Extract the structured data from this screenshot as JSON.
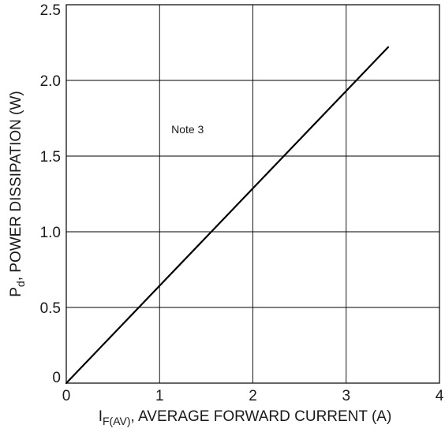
{
  "chart_data": {
    "type": "line",
    "title": "",
    "xlabel": {
      "main": "I",
      "sub": "F(AV)",
      "rest": ", AVERAGE FORWARD CURRENT (A)"
    },
    "ylabel": {
      "main": "P",
      "sub": "d",
      "rest": ", POWER DISSIPATION (W)"
    },
    "xlim": [
      0,
      4
    ],
    "ylim": [
      0,
      2.5
    ],
    "x_ticks": [
      "0",
      "1",
      "2",
      "3",
      "4"
    ],
    "y_ticks": [
      "0",
      "0.5",
      "1.0",
      "1.5",
      "2.0",
      "2.5"
    ],
    "grid": true,
    "legend": "none",
    "series": [
      {
        "x": [
          0,
          3.45
        ],
        "y": [
          0,
          2.22
        ],
        "color": "#000000"
      }
    ],
    "annotations": [
      {
        "text": "Note 3",
        "x": 1.3,
        "y": 1.65
      }
    ]
  }
}
